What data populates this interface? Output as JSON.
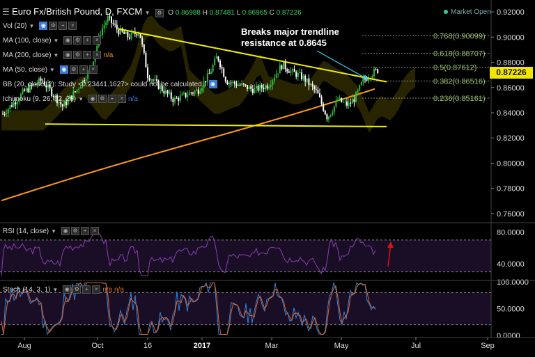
{
  "header": {
    "symbol_title": "Euro Fx/British Pound, D, FXCM",
    "ohlc": {
      "o_label": "O",
      "o_value": "0.86988",
      "h_label": "H",
      "h_value": "0.87481",
      "l_label": "L",
      "l_value": "0.86965",
      "c_label": "C",
      "c_value": "0.87226"
    },
    "market_status": "Market Open"
  },
  "indicators": [
    {
      "label": "Vol (20)"
    },
    {
      "label": "MA (100, close)"
    },
    {
      "label": "MA (200, close)",
      "value": "n/a"
    },
    {
      "label": "MA (50, close)"
    },
    {
      "label": "BB (20, close, 2): Study <0.23441.1627> could not be calculated."
    },
    {
      "label": "Ichimoku (9, 26, 52, 26)",
      "value": "n/a"
    }
  ],
  "annotation": "Breaks major trendline resistance at 0.8645",
  "colors": {
    "up": "#2dbb3d",
    "down": "#ffffff",
    "ma200": "#ff9a10",
    "trendline": "#f2f000",
    "fib": "#8a8a8a",
    "fib_text": "#99c36e",
    "rsi": "#8a3fb0",
    "stoch_k": "#2e86e0",
    "stoch_d": "#e0642e",
    "arrow_red": "#e01010",
    "arrow_cyan": "#38d0f0"
  },
  "chart_data": [
    {
      "type": "candlestick",
      "title": "Euro Fx/British Pound, D, FXCM",
      "x_ticks": [
        "Aug",
        "Oct",
        "16",
        "2017",
        "Mar",
        "May",
        "Jul",
        "Sep"
      ],
      "y_ticks": [
        "0.92000",
        "0.90000",
        "0.88000",
        "0.86000",
        "0.84000",
        "0.82000",
        "0.80000",
        "0.78000",
        "0.76000"
      ],
      "ylim": [
        0.755,
        0.925
      ],
      "last_price": "0.87226",
      "fib_levels": [
        {
          "label": "0.768(0.90099)",
          "value": 0.90099
        },
        {
          "label": "0.618(0.88707)",
          "value": 0.88707
        },
        {
          "label": "0.5(0.87612)",
          "value": 0.87612
        },
        {
          "label": "0.382(0.86516)",
          "value": 0.86516
        },
        {
          "label": "0.236(0.85161)",
          "value": 0.85161
        }
      ],
      "trendlines": [
        {
          "from": [
            "Oct",
            0.9065
          ],
          "to": [
            "May",
            0.8645
          ]
        },
        {
          "from": [
            "Aug",
            0.831
          ],
          "to": [
            "May",
            0.829
          ]
        }
      ],
      "series": [
        {
          "name": "MA (200, close)"
        }
      ]
    },
    {
      "type": "line",
      "title": "RSI (14, close)",
      "y_ticks": [
        "80.0000",
        "40.0000"
      ],
      "levels": [
        70,
        30
      ]
    },
    {
      "type": "line",
      "title": "Stoch (14, 3, 1)",
      "y_ticks": [
        "100.0000",
        "50.0000",
        "0.0000"
      ],
      "levels": [
        80,
        20
      ],
      "value": "n/a n/a"
    }
  ]
}
